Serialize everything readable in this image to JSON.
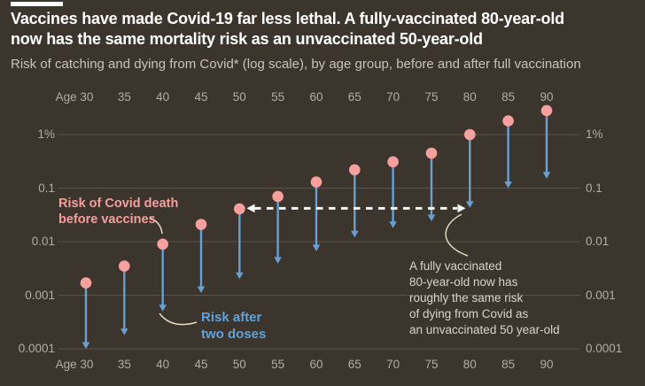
{
  "header": {
    "title_lines": [
      "Vaccines have made Covid-19 far less lethal. A fully-vaccinated 80-year-old",
      "now has the same mortality risk as an unvaccinated 50-year-old"
    ],
    "subtitle": "Risk of catching and dying from Covid* (log scale), by age group, before and after full vaccination"
  },
  "colors": {
    "background": "#3b352d",
    "title": "#ffffff",
    "subtitle": "#c9c2b8",
    "axis_label": "#b3aca1",
    "gridline": "#5a5349",
    "before_dot": "#f8a09e",
    "after_arrow": "#68a0d2",
    "before_label": "#f89e9d",
    "after_label": "#61a2da",
    "callout_text": "#d9d3c9",
    "comparison_arrow": "#ffffff",
    "connector": "#e6d9c2",
    "accent_bar": "#ffffff"
  },
  "chart_data": {
    "type": "scatter",
    "subtype": "dot-and-arrow (before/after range), log y-scale",
    "x_prefix": "Age",
    "categories": [
      30,
      35,
      40,
      45,
      50,
      55,
      60,
      65,
      70,
      75,
      80,
      85,
      90
    ],
    "series": [
      {
        "name": "Risk of Covid death before vaccines",
        "marker": "pink-dot",
        "values_percent": [
          0.0017,
          0.0035,
          0.009,
          0.021,
          0.041,
          0.07,
          0.13,
          0.22,
          0.31,
          0.45,
          1.0,
          1.8,
          2.8
        ]
      },
      {
        "name": "Risk after two doses",
        "marker": "blue-down-arrow",
        "values_percent": [
          0.0001,
          0.00018,
          0.0005,
          0.0011,
          0.002,
          0.0039,
          0.0066,
          0.012,
          0.018,
          0.024,
          0.043,
          0.1,
          0.15
        ]
      }
    ],
    "y_ticks": [
      {
        "label": "1%",
        "value": 1
      },
      {
        "label": "0.1",
        "value": 0.1
      },
      {
        "label": "0.01",
        "value": 0.01
      },
      {
        "label": "0.001",
        "value": 0.001
      },
      {
        "label": "0.0001",
        "value": 0.0001
      }
    ],
    "comparison": {
      "from_age": 50,
      "to_age": 80,
      "at_percent": 0.042
    }
  },
  "annotations": {
    "before_label_lines": [
      "Risk of Covid death",
      "before vaccines"
    ],
    "after_label_lines": [
      "Risk after",
      "two doses"
    ],
    "callout_lines": [
      "A fully vaccinated",
      "80-year-old now has",
      "roughly the same risk",
      "of dying from Covid as",
      "an unvaccinated 50 year-old"
    ]
  }
}
